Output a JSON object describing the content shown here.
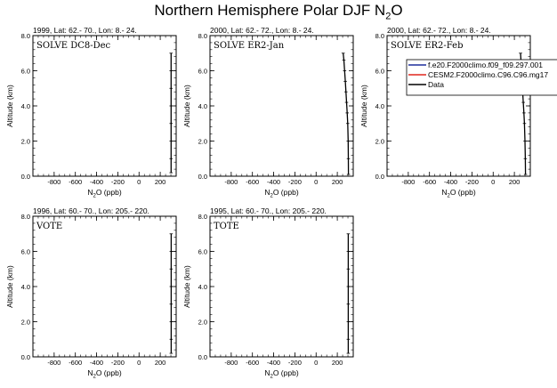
{
  "title": "Northern Hemisphere Polar DJF N",
  "title_sub": "2",
  "title_tail": "O",
  "colors": {
    "model1": "#1f2f9c",
    "model2": "#e0261d",
    "data": "#000000"
  },
  "chart_data": [
    {
      "type": "line",
      "header": "1999, Lat: 62.- 70., Lon: 8.- 24.",
      "campaign": "SOLVE DC8-Dec",
      "xlabel": "N2O (ppb)",
      "ylabel": "Altitude (km)",
      "xlim": [
        -1000,
        350
      ],
      "ylim": [
        0,
        8
      ],
      "xticks": [
        -800,
        -600,
        -400,
        -200,
        0,
        200
      ],
      "yticks": [
        0.0,
        2.0,
        4.0,
        6.0,
        8.0
      ],
      "series": [
        {
          "kind": "data",
          "x": [
            302,
            302,
            302,
            302,
            302,
            302,
            302,
            302
          ],
          "y": [
            0.2,
            1.0,
            2.0,
            3.0,
            4.0,
            5.0,
            6.0,
            7.0
          ]
        }
      ]
    },
    {
      "type": "line",
      "header": "2000, Lat: 62.- 72., Lon: 8.- 24.",
      "campaign": "SOLVE ER2-Jan",
      "xlabel": "N2O (ppb)",
      "ylabel": "Altitude (km)",
      "xlim": [
        -1000,
        350
      ],
      "ylim": [
        0,
        8
      ],
      "xticks": [
        -800,
        -600,
        -400,
        -200,
        0,
        200
      ],
      "yticks": [
        0.0,
        2.0,
        4.0,
        6.0,
        8.0
      ],
      "series": [
        {
          "kind": "data",
          "x": [
            305,
            304,
            302,
            298,
            293,
            287,
            281,
            275,
            269,
            262,
            255
          ],
          "y": [
            0.1,
            1.0,
            2.0,
            3.0,
            3.6,
            4.2,
            4.8,
            5.4,
            6.0,
            6.6,
            7.0
          ]
        }
      ]
    },
    {
      "type": "line",
      "header": "2000, Lat: 62.- 72., Lon: 8.- 24.",
      "campaign": "SOLVE ER2-Feb",
      "xlabel": "N2O (ppb)",
      "ylabel": "Altitude (km)",
      "xlim": [
        -1000,
        350
      ],
      "ylim": [
        0,
        8
      ],
      "xticks": [
        -800,
        -600,
        -400,
        -200,
        0,
        200
      ],
      "yticks": [
        0.0,
        2.0,
        4.0,
        6.0,
        8.0
      ],
      "legend": [
        "f.e20.F2000climo.f09_f09.297.001",
        "CESM2.F2000climo.C96.C96.mg17",
        "Data"
      ],
      "series": [
        {
          "kind": "data",
          "x": [
            305,
            303,
            300,
            295,
            290,
            284,
            278,
            272,
            266,
            262,
            258
          ],
          "y": [
            0.1,
            1.0,
            2.0,
            3.0,
            3.6,
            4.2,
            4.8,
            5.4,
            6.0,
            6.6,
            7.0
          ]
        }
      ]
    },
    {
      "type": "line",
      "header": "1996, Lat: 60.- 70., Lon: 205.- 220.",
      "campaign": "VOTE",
      "xlabel": "N2O (ppb)",
      "ylabel": "Altitude (km)",
      "xlim": [
        -1000,
        350
      ],
      "ylim": [
        0,
        8
      ],
      "xticks": [
        -800,
        -600,
        -400,
        -200,
        0,
        200
      ],
      "yticks": [
        0.0,
        2.0,
        4.0,
        6.0,
        8.0
      ],
      "series": [
        {
          "kind": "data",
          "x": [
            303,
            303,
            303,
            303,
            303,
            303,
            303,
            303
          ],
          "y": [
            0.2,
            1.0,
            2.0,
            3.0,
            4.0,
            5.0,
            6.0,
            7.0
          ]
        }
      ]
    },
    {
      "type": "line",
      "header": "1995, Lat: 60.- 70., Lon: 205.- 220.",
      "campaign": "TOTE",
      "xlabel": "N2O (ppb)",
      "ylabel": "Altitude (km)",
      "xlim": [
        -1000,
        350
      ],
      "ylim": [
        0,
        8
      ],
      "xticks": [
        -800,
        -600,
        -400,
        -200,
        0,
        200
      ],
      "yticks": [
        0.0,
        2.0,
        4.0,
        6.0,
        8.0
      ],
      "series": [
        {
          "kind": "data",
          "x": [
            303,
            303,
            303,
            303,
            303,
            303,
            303,
            303
          ],
          "y": [
            0.2,
            1.0,
            2.0,
            3.0,
            4.0,
            5.0,
            6.0,
            7.0
          ]
        }
      ]
    }
  ]
}
